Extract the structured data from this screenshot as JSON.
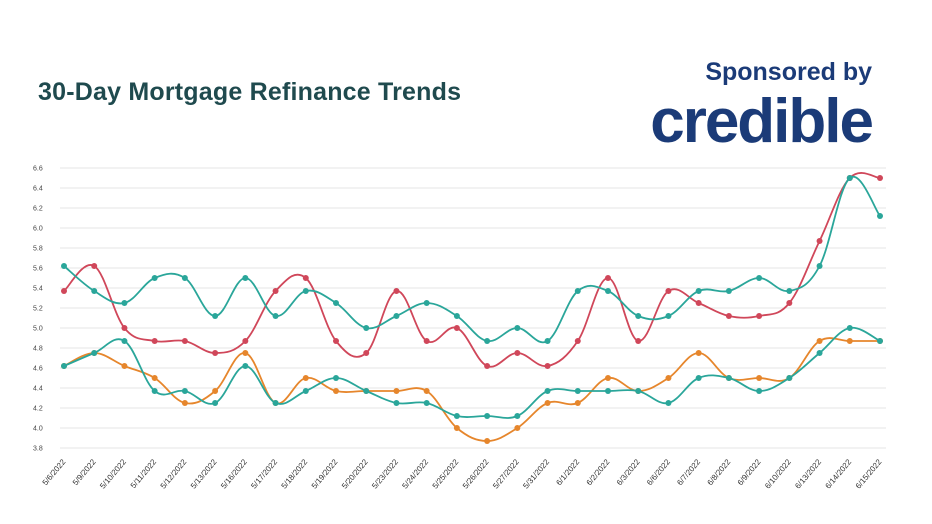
{
  "title": "30-Day Mortgage Refinance Trends",
  "sponsor": {
    "label": "Sponsored by",
    "brand": "credible"
  },
  "colors": {
    "title": "#1f4a4e",
    "brand": "#1b3b78",
    "grid": "#e4e4e4"
  },
  "chart_data": {
    "type": "line",
    "title": "30-Day Mortgage Refinance Trends",
    "xlabel": "",
    "ylabel": "",
    "ylim": [
      3.8,
      6.6
    ],
    "yticks": [
      3.8,
      4.0,
      4.2,
      4.4,
      4.6,
      4.8,
      5.0,
      5.2,
      5.4,
      5.6,
      5.8,
      6.0,
      6.2,
      6.4,
      6.6
    ],
    "grid": true,
    "legend": "none",
    "categories": [
      "5/6/2022",
      "5/9/2022",
      "5/10/2022",
      "5/11/2022",
      "5/12/2022",
      "5/13/2022",
      "5/16/2022",
      "5/17/2022",
      "5/18/2022",
      "5/19/2022",
      "5/20/2022",
      "5/23/2022",
      "5/24/2022",
      "5/25/2022",
      "5/26/2022",
      "5/27/2022",
      "5/31/2022",
      "6/1/2022",
      "6/2/2022",
      "6/3/2022",
      "6/6/2022",
      "6/7/2022",
      "6/8/2022",
      "6/9/2022",
      "6/10/2022",
      "6/13/2022",
      "6/14/2022",
      "6/15/2022"
    ],
    "series": [
      {
        "color": "#d0475a",
        "values": [
          5.37,
          5.62,
          5.0,
          4.87,
          4.87,
          4.75,
          4.87,
          5.37,
          5.5,
          4.87,
          4.75,
          5.37,
          4.87,
          5.0,
          4.62,
          4.75,
          4.62,
          4.87,
          5.5,
          4.87,
          5.37,
          5.25,
          5.12,
          5.12,
          5.25,
          5.87,
          6.5,
          6.5
        ]
      },
      {
        "color": "#2aa69a",
        "values": [
          5.62,
          5.37,
          5.25,
          5.5,
          5.5,
          5.12,
          5.5,
          5.12,
          5.37,
          5.25,
          5.0,
          5.12,
          5.25,
          5.12,
          4.87,
          5.0,
          4.87,
          5.37,
          5.37,
          5.12,
          5.12,
          5.37,
          5.37,
          5.5,
          5.37,
          5.62,
          6.5,
          6.12
        ]
      },
      {
        "color": "#e6862c",
        "values": [
          4.62,
          4.75,
          4.62,
          4.5,
          4.25,
          4.37,
          4.75,
          4.25,
          4.5,
          4.37,
          4.37,
          4.37,
          4.37,
          4.0,
          3.87,
          4.0,
          4.25,
          4.25,
          4.5,
          4.37,
          4.5,
          4.75,
          4.5,
          4.5,
          4.5,
          4.87,
          4.87,
          4.87
        ]
      },
      {
        "color": "#2aa69a",
        "values": [
          4.62,
          4.75,
          4.87,
          4.37,
          4.37,
          4.25,
          4.62,
          4.25,
          4.37,
          4.5,
          4.37,
          4.25,
          4.25,
          4.12,
          4.12,
          4.12,
          4.37,
          4.37,
          4.37,
          4.37,
          4.25,
          4.5,
          4.5,
          4.37,
          4.5,
          4.75,
          5.0,
          4.87
        ]
      }
    ]
  }
}
